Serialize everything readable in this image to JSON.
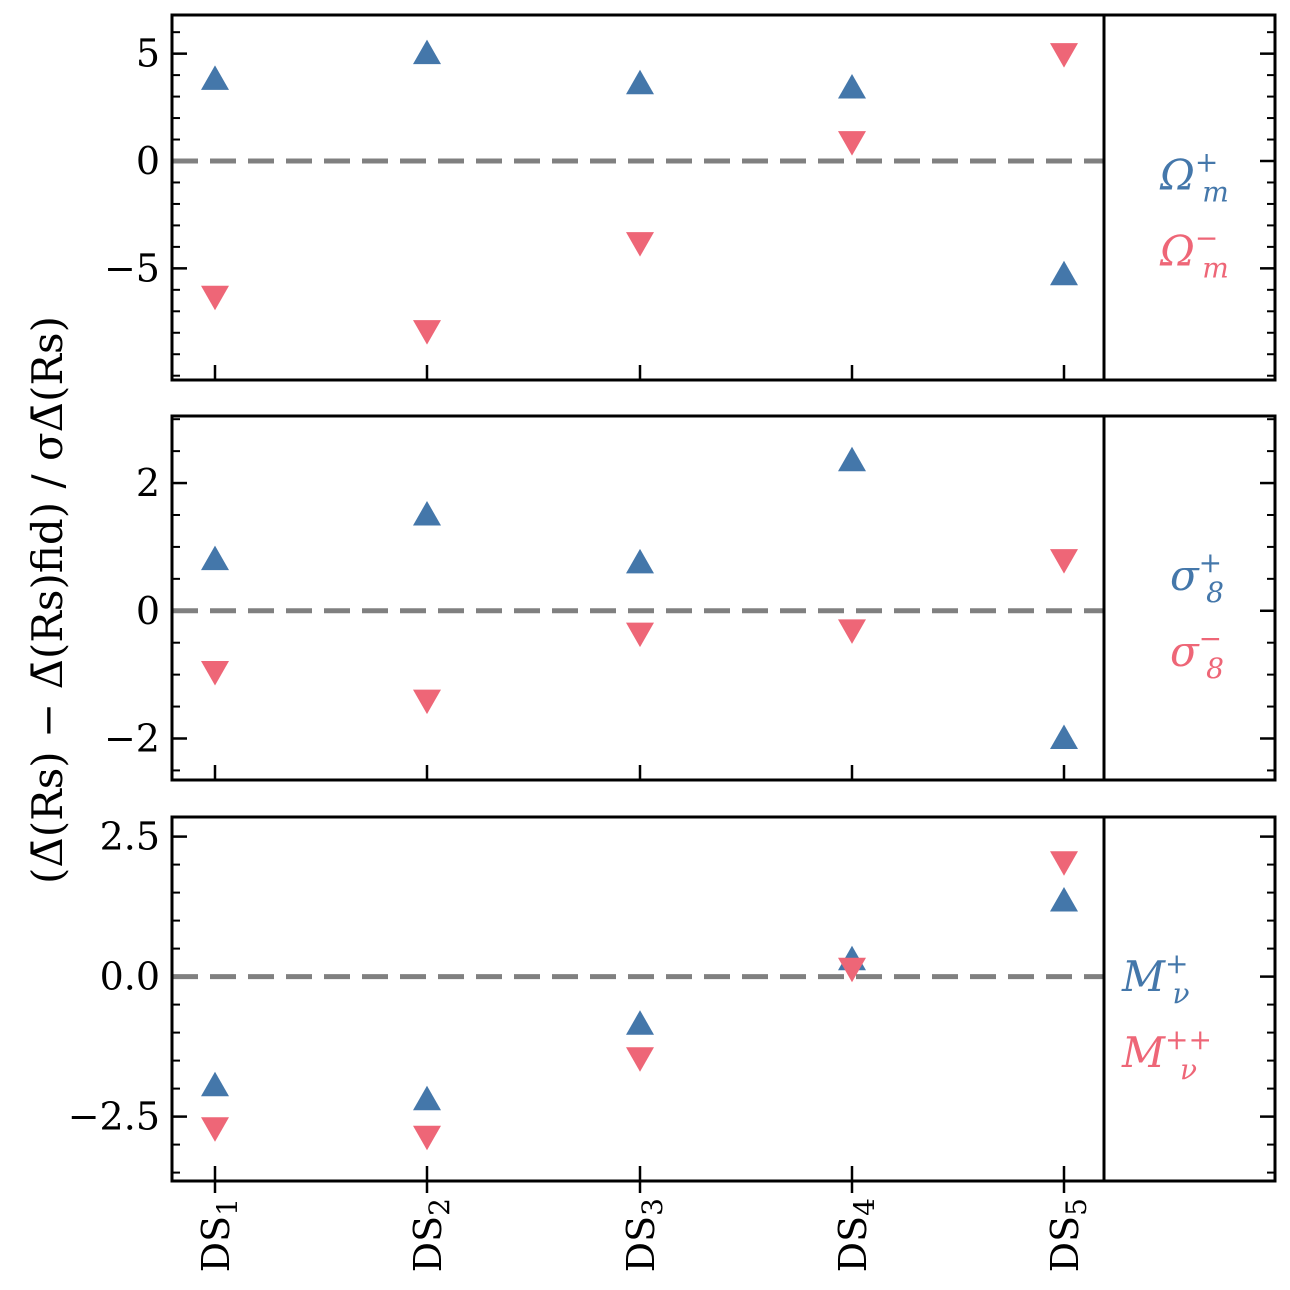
{
  "chart_data": {
    "type": "scatter",
    "categories": [
      "DS1",
      "DS2",
      "DS3",
      "DS4",
      "DS5"
    ],
    "ylabel": "(Δ̄(Rs) − Δ̄(Rs)fid) / σΔ̄(Rs)",
    "colors": {
      "up": "#4477aa",
      "down": "#ee6677",
      "zero_line": "#808080",
      "axis": "#000000"
    },
    "panels": [
      {
        "ylim": [
          -10.2,
          6.8
        ],
        "yticks": [
          -5,
          0,
          5
        ],
        "ytick_labels": [
          "−5",
          "0",
          "5"
        ],
        "minor_step": 1,
        "series": [
          {
            "name": "Ω_m^+",
            "marker": "triangle-up",
            "color": "#4477aa",
            "values": [
              3.8,
              5.0,
              3.6,
              3.4,
              -5.3
            ]
          },
          {
            "name": "Ω_m^−",
            "marker": "triangle-down",
            "color": "#ee6677",
            "values": [
              -6.3,
              -7.9,
              -3.8,
              0.9,
              5.0
            ]
          }
        ],
        "legend": [
          {
            "base": "Ω",
            "sub": "m",
            "sup": "+",
            "color": "#4477aa"
          },
          {
            "base": "Ω",
            "sub": "m",
            "sup": "−",
            "color": "#ee6677"
          }
        ]
      },
      {
        "ylim": [
          -2.65,
          3.05
        ],
        "yticks": [
          -2,
          0,
          2
        ],
        "ytick_labels": [
          "−2",
          "0",
          "2"
        ],
        "minor_step": 0.5,
        "series": [
          {
            "name": "σ_8^+",
            "marker": "triangle-up",
            "color": "#4477aa",
            "values": [
              0.8,
              1.5,
              0.75,
              2.35,
              -2.0
            ]
          },
          {
            "name": "σ_8^−",
            "marker": "triangle-down",
            "color": "#ee6677",
            "values": [
              -0.95,
              -1.4,
              -0.35,
              -0.3,
              0.8
            ]
          }
        ],
        "legend": [
          {
            "base": "σ",
            "sub": "8",
            "sup": "+",
            "color": "#4477aa"
          },
          {
            "base": "σ",
            "sub": "8",
            "sup": "−",
            "color": "#ee6677"
          }
        ]
      },
      {
        "ylim": [
          -3.65,
          2.85
        ],
        "yticks": [
          -2.5,
          0,
          2.5
        ],
        "ytick_labels": [
          "−2.5",
          "0.0",
          "2.5"
        ],
        "minor_step": 0.5,
        "series": [
          {
            "name": "M_ν^+",
            "marker": "triangle-up",
            "color": "#4477aa",
            "values": [
              -1.95,
              -2.2,
              -0.85,
              0.3,
              1.35
            ]
          },
          {
            "name": "M_ν^++",
            "marker": "triangle-down",
            "color": "#ee6677",
            "values": [
              -2.7,
              -2.85,
              -1.45,
              0.15,
              2.05
            ]
          }
        ],
        "legend": [
          {
            "base": "M",
            "sub": "ν",
            "sup": "+",
            "color": "#4477aa"
          },
          {
            "base": "M",
            "sub": "ν",
            "sup": "++",
            "color": "#ee6677"
          }
        ]
      }
    ]
  }
}
